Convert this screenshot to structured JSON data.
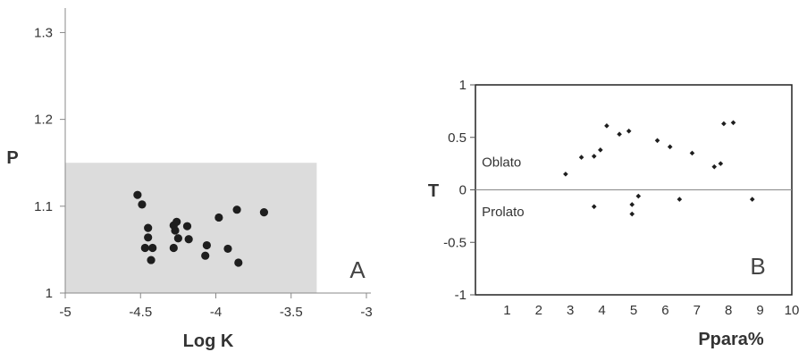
{
  "chart_data": [
    {
      "type": "scatter",
      "panel_label": "A",
      "xlabel": "Log K",
      "ylabel": "P",
      "xlim": [
        -5,
        -3
      ],
      "ylim": [
        1,
        1.32
      ],
      "xticks": [
        "-5",
        "-4.5",
        "-4",
        "-3.5",
        "-3"
      ],
      "xtick_values": [
        -5,
        -4.5,
        -4,
        -3.5,
        -3
      ],
      "yticks": [
        "1",
        "1.1",
        "1.2",
        "1.3"
      ],
      "ytick_values": [
        1,
        1.1,
        1.2,
        1.3
      ],
      "shaded_region": {
        "x": [
          -5,
          -3.33
        ],
        "y": [
          1,
          1.15
        ],
        "color": "#dcdcdc"
      },
      "marker_color": "#1e1e1e",
      "points": [
        {
          "x": -4.52,
          "y": 1.113
        },
        {
          "x": -4.49,
          "y": 1.102
        },
        {
          "x": -4.45,
          "y": 1.075
        },
        {
          "x": -4.45,
          "y": 1.064
        },
        {
          "x": -4.47,
          "y": 1.052
        },
        {
          "x": -4.42,
          "y": 1.052
        },
        {
          "x": -4.43,
          "y": 1.038
        },
        {
          "x": -4.28,
          "y": 1.078
        },
        {
          "x": -4.27,
          "y": 1.072
        },
        {
          "x": -4.26,
          "y": 1.082
        },
        {
          "x": -4.25,
          "y": 1.063
        },
        {
          "x": -4.28,
          "y": 1.052
        },
        {
          "x": -4.19,
          "y": 1.077
        },
        {
          "x": -4.18,
          "y": 1.062
        },
        {
          "x": -4.06,
          "y": 1.055
        },
        {
          "x": -4.07,
          "y": 1.043
        },
        {
          "x": -3.98,
          "y": 1.087
        },
        {
          "x": -3.92,
          "y": 1.051
        },
        {
          "x": -3.86,
          "y": 1.096
        },
        {
          "x": -3.85,
          "y": 1.035
        },
        {
          "x": -3.68,
          "y": 1.093
        }
      ]
    },
    {
      "type": "scatter",
      "panel_label": "B",
      "xlabel": "Ppara%",
      "ylabel": "T",
      "xlim": [
        0,
        10
      ],
      "ylim": [
        -1,
        1
      ],
      "xticks": [
        "1",
        "2",
        "3",
        "4",
        "5",
        "6",
        "7",
        "8",
        "9",
        "10"
      ],
      "xtick_values": [
        1,
        2,
        3,
        4,
        5,
        6,
        7,
        8,
        9,
        10
      ],
      "yticks": [
        "-1",
        "-0.5",
        "0",
        "0.5",
        "1"
      ],
      "ytick_values": [
        -1,
        -0.5,
        0,
        0.5,
        1
      ],
      "annotations": [
        {
          "text": "Oblato",
          "x": 0.2,
          "y": 0.22
        },
        {
          "text": "Prolato",
          "x": 0.2,
          "y": -0.25
        }
      ],
      "marker_color": "#1e1e1e",
      "points": [
        {
          "x": 2.85,
          "y": 0.15
        },
        {
          "x": 3.35,
          "y": 0.31
        },
        {
          "x": 3.75,
          "y": 0.32
        },
        {
          "x": 3.95,
          "y": 0.38
        },
        {
          "x": 4.15,
          "y": 0.61
        },
        {
          "x": 4.55,
          "y": 0.53
        },
        {
          "x": 4.85,
          "y": 0.56
        },
        {
          "x": 3.75,
          "y": -0.16
        },
        {
          "x": 4.95,
          "y": -0.14
        },
        {
          "x": 4.95,
          "y": -0.23
        },
        {
          "x": 5.15,
          "y": -0.06
        },
        {
          "x": 5.75,
          "y": 0.47
        },
        {
          "x": 6.15,
          "y": 0.41
        },
        {
          "x": 6.45,
          "y": -0.09
        },
        {
          "x": 6.85,
          "y": 0.35
        },
        {
          "x": 7.55,
          "y": 0.22
        },
        {
          "x": 7.75,
          "y": 0.25
        },
        {
          "x": 7.85,
          "y": 0.63
        },
        {
          "x": 8.15,
          "y": 0.64
        },
        {
          "x": 8.75,
          "y": -0.09
        }
      ]
    }
  ]
}
